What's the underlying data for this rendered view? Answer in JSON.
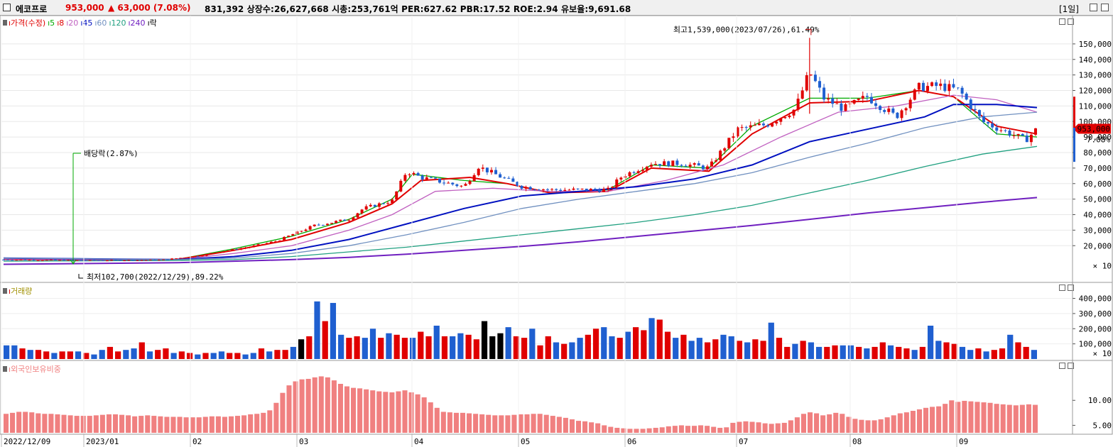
{
  "header": {
    "name": "에코프로",
    "price": "953,000",
    "change": "▲ 63,000 (7.08%)",
    "stats": "831,392  상장수:26,627,668  시총:253,761억  PER:627.62  PBR:17.52  ROE:2.94  유보율:9,691.68",
    "period": "[1일]"
  },
  "colors": {
    "up": "#e00000",
    "down": "#1f5fd0",
    "ma5": "#00aa00",
    "ma8": "#e00000",
    "ma20": "#c060c0",
    "ma45": "#0010c0",
    "ma60": "#7090c0",
    "ma120": "#20a080",
    "ma240": "#7020c0",
    "foreign": "#f08080"
  },
  "legend_price": [
    {
      "text": "가격(수정)",
      "color": "#e00000"
    },
    {
      "text": "5",
      "color": "#00aa00"
    },
    {
      "text": "8",
      "color": "#e00000"
    },
    {
      "text": "20",
      "color": "#c060c0"
    },
    {
      "text": "45",
      "color": "#0010c0"
    },
    {
      "text": "60",
      "color": "#7090c0"
    },
    {
      "text": "120",
      "color": "#20a080"
    },
    {
      "text": "240",
      "color": "#7020c0"
    },
    {
      "text": "락",
      "color": "#000000"
    }
  ],
  "legend_volume": "거래량",
  "legend_foreign": "외국인보유비중",
  "annotations": {
    "high": "최고1,539,000(2023/07/26),61.49%",
    "low": "최저102,700(2022/12/29),89.22%",
    "dividend": "배당락(2.87%)"
  },
  "price_badge": "953,000",
  "price_pct": "7.08%",
  "chart_data": [
    {
      "type": "candlestick",
      "title": "가격(수정)",
      "y_ticks": [
        "150,000",
        "140,000",
        "130,000",
        "120,000",
        "110,000",
        "100,000",
        "90,000",
        "80,000",
        "70,000",
        "60,000",
        "50,000",
        "40,000",
        "30,000",
        "20,000"
      ],
      "y_unit": "× 10",
      "ylim": [
        0,
        160000
      ],
      "x_labels": [
        "2022/12/09",
        "2023/01",
        "02",
        "03",
        "04",
        "05",
        "06",
        "07",
        "08",
        "09"
      ],
      "close_points": [
        [
          0,
          11000
        ],
        [
          30,
          10500
        ],
        [
          55,
          10800
        ],
        [
          68,
          13500
        ],
        [
          75,
          16000
        ],
        [
          85,
          19000
        ],
        [
          95,
          23000
        ],
        [
          100,
          27000
        ],
        [
          108,
          33000
        ],
        [
          120,
          37000
        ],
        [
          125,
          44000
        ],
        [
          135,
          49000
        ],
        [
          140,
          68000
        ],
        [
          145,
          64000
        ],
        [
          150,
          62000
        ],
        [
          160,
          58000
        ],
        [
          165,
          71000
        ],
        [
          180,
          58000
        ],
        [
          190,
          56000
        ],
        [
          200,
          56000
        ],
        [
          210,
          56000
        ],
        [
          215,
          65000
        ],
        [
          225,
          73000
        ],
        [
          235,
          73000
        ],
        [
          245,
          70000
        ],
        [
          255,
          95000
        ],
        [
          265,
          98000
        ],
        [
          275,
          108000
        ],
        [
          280,
          132000
        ],
        [
          285,
          115000
        ],
        [
          292,
          108000
        ],
        [
          300,
          116000
        ],
        [
          310,
          103000
        ],
        [
          318,
          122000
        ],
        [
          325,
          123000
        ],
        [
          332,
          120000
        ],
        [
          340,
          100000
        ],
        [
          350,
          92000
        ],
        [
          355,
          88000
        ],
        [
          359,
          95300
        ]
      ],
      "ma_series": [
        {
          "name": "5",
          "color": "#00aa00",
          "points": [
            [
              0,
              11000
            ],
            [
              60,
              11000
            ],
            [
              80,
              18000
            ],
            [
              100,
              26000
            ],
            [
              120,
              37000
            ],
            [
              135,
              50000
            ],
            [
              142,
              66000
            ],
            [
              160,
              62000
            ],
            [
              175,
              60000
            ],
            [
              190,
              54000
            ],
            [
              210,
              56000
            ],
            [
              225,
              72000
            ],
            [
              245,
              70000
            ],
            [
              260,
              97000
            ],
            [
              280,
              115000
            ],
            [
              300,
              115000
            ],
            [
              318,
              120000
            ],
            [
              330,
              116000
            ],
            [
              345,
              92000
            ],
            [
              359,
              90000
            ]
          ]
        },
        {
          "name": "8",
          "color": "#e00000",
          "points": [
            [
              0,
              11000
            ],
            [
              60,
              11000
            ],
            [
              80,
              17000
            ],
            [
              100,
              24000
            ],
            [
              120,
              35000
            ],
            [
              135,
              47000
            ],
            [
              145,
              62000
            ],
            [
              162,
              64000
            ],
            [
              175,
              60000
            ],
            [
              190,
              54000
            ],
            [
              210,
              55000
            ],
            [
              225,
              70000
            ],
            [
              245,
              68000
            ],
            [
              260,
              92000
            ],
            [
              280,
              112000
            ],
            [
              300,
              113000
            ],
            [
              318,
              120000
            ],
            [
              330,
              116000
            ],
            [
              345,
              97000
            ],
            [
              359,
              92000
            ]
          ]
        },
        {
          "name": "20",
          "color": "#c060c0",
          "points": [
            [
              0,
              11000
            ],
            [
              60,
              11000
            ],
            [
              80,
              15000
            ],
            [
              100,
              20000
            ],
            [
              120,
              30000
            ],
            [
              135,
              40000
            ],
            [
              150,
              55000
            ],
            [
              170,
              57000
            ],
            [
              190,
              55000
            ],
            [
              210,
              55000
            ],
            [
              230,
              62000
            ],
            [
              250,
              72000
            ],
            [
              270,
              90000
            ],
            [
              290,
              106000
            ],
            [
              310,
              110000
            ],
            [
              330,
              117000
            ],
            [
              345,
              114000
            ],
            [
              359,
              106000
            ]
          ]
        },
        {
          "name": "45",
          "color": "#0010c0",
          "points": [
            [
              0,
              12000
            ],
            [
              60,
              11000
            ],
            [
              80,
              13000
            ],
            [
              100,
              17000
            ],
            [
              120,
              24000
            ],
            [
              140,
              34000
            ],
            [
              160,
              44000
            ],
            [
              180,
              52000
            ],
            [
              200,
              55000
            ],
            [
              220,
              58000
            ],
            [
              240,
              63000
            ],
            [
              260,
              72000
            ],
            [
              280,
              87000
            ],
            [
              300,
              95000
            ],
            [
              320,
              103000
            ],
            [
              330,
              111000
            ],
            [
              345,
              111000
            ],
            [
              359,
              109000
            ]
          ]
        },
        {
          "name": "60",
          "color": "#7090c0",
          "points": [
            [
              0,
              12000
            ],
            [
              60,
              11000
            ],
            [
              80,
              12000
            ],
            [
              100,
              15000
            ],
            [
              120,
              20000
            ],
            [
              140,
              27000
            ],
            [
              160,
              35000
            ],
            [
              180,
              44000
            ],
            [
              200,
              50000
            ],
            [
              220,
              55000
            ],
            [
              240,
              60000
            ],
            [
              260,
              67000
            ],
            [
              280,
              77000
            ],
            [
              300,
              86000
            ],
            [
              320,
              96000
            ],
            [
              340,
              103000
            ],
            [
              359,
              106000
            ]
          ]
        },
        {
          "name": "120",
          "color": "#20a080",
          "points": [
            [
              0,
              10000
            ],
            [
              60,
              10500
            ],
            [
              80,
              11000
            ],
            [
              100,
              13000
            ],
            [
              120,
              16000
            ],
            [
              140,
              19000
            ],
            [
              160,
              23000
            ],
            [
              180,
              27000
            ],
            [
              200,
              31000
            ],
            [
              220,
              35000
            ],
            [
              240,
              40000
            ],
            [
              260,
              46000
            ],
            [
              280,
              54000
            ],
            [
              300,
              62000
            ],
            [
              320,
              71000
            ],
            [
              340,
              79000
            ],
            [
              359,
              84000
            ]
          ]
        },
        {
          "name": "240",
          "color": "#7020c0",
          "points": [
            [
              0,
              8000
            ],
            [
              60,
              9000
            ],
            [
              80,
              10000
            ],
            [
              100,
              11000
            ],
            [
              120,
              12500
            ],
            [
              140,
              14500
            ],
            [
              160,
              17000
            ],
            [
              180,
              19500
            ],
            [
              200,
              22500
            ],
            [
              220,
              26000
            ],
            [
              240,
              29500
            ],
            [
              260,
              33000
            ],
            [
              280,
              37000
            ],
            [
              300,
              41000
            ],
            [
              320,
              44500
            ],
            [
              340,
              48000
            ],
            [
              359,
              51000
            ]
          ]
        }
      ]
    },
    {
      "type": "bar",
      "title": "거래량",
      "y_ticks": [
        "400,000",
        "300,000",
        "200,000",
        "100,000"
      ],
      "y_unit": "× 10",
      "ylim": [
        0,
        440000
      ],
      "values": [
        90000,
        90000,
        70000,
        60000,
        60000,
        50000,
        40000,
        50000,
        50000,
        50000,
        40000,
        30000,
        60000,
        80000,
        50000,
        60000,
        70000,
        110000,
        50000,
        60000,
        70000,
        40000,
        50000,
        40000,
        30000,
        40000,
        40000,
        50000,
        40000,
        40000,
        30000,
        40000,
        70000,
        50000,
        60000,
        60000,
        80000,
        130000,
        150000,
        380000,
        250000,
        370000,
        160000,
        140000,
        150000,
        140000,
        200000,
        140000,
        170000,
        160000,
        140000,
        140000,
        180000,
        150000,
        220000,
        150000,
        150000,
        170000,
        160000,
        130000,
        250000,
        150000,
        170000,
        210000,
        150000,
        140000,
        200000,
        90000,
        150000,
        110000,
        100000,
        110000,
        140000,
        160000,
        200000,
        210000,
        150000,
        140000,
        180000,
        210000,
        190000,
        270000,
        260000,
        180000,
        140000,
        160000,
        120000,
        140000,
        110000,
        130000,
        160000,
        150000,
        120000,
        110000,
        130000,
        120000,
        240000,
        140000,
        80000,
        100000,
        120000,
        110000,
        80000,
        80000,
        90000,
        90000,
        90000,
        80000,
        70000,
        80000,
        110000,
        90000,
        80000,
        70000,
        60000,
        80000,
        220000,
        120000,
        110000,
        100000,
        80000,
        60000,
        70000,
        50000,
        60000,
        70000,
        160000,
        110000,
        80000,
        60000
      ],
      "colors": "alternating up/down per session"
    },
    {
      "type": "bar",
      "title": "외국인보유비중",
      "y_ticks": [
        "10.00",
        "5.00"
      ],
      "ylim": [
        3.5,
        16
      ],
      "values": [
        7.3,
        7.5,
        7.7,
        7.7,
        7.6,
        7.4,
        7.3,
        7.3,
        7.2,
        7.1,
        7.0,
        6.9,
        6.9,
        6.9,
        7.0,
        7.1,
        7.2,
        7.2,
        7.1,
        7.0,
        6.8,
        6.9,
        7.0,
        6.9,
        6.8,
        6.7,
        6.7,
        6.7,
        6.6,
        6.6,
        6.6,
        6.7,
        6.8,
        6.8,
        6.7,
        6.8,
        6.9,
        7.0,
        7.2,
        7.3,
        7.5,
        8.0,
        9.5,
        11.5,
        13.0,
        13.8,
        14.2,
        14.3,
        14.6,
        14.8,
        14.6,
        14.0,
        13.3,
        12.8,
        12.5,
        12.4,
        12.2,
        12.0,
        11.8,
        11.7,
        11.6,
        11.8,
        12.0,
        11.6,
        11.2,
        10.6,
        9.6,
        8.5,
        7.7,
        7.6,
        7.5,
        7.5,
        7.4,
        7.3,
        7.2,
        7.1,
        7.0,
        7.0,
        7.0,
        7.1,
        7.2,
        7.2,
        7.3,
        7.3,
        7.1,
        6.9,
        6.7,
        6.5,
        6.2,
        5.9,
        5.8,
        5.6,
        5.4,
        5.0,
        4.7,
        4.5,
        4.4,
        4.3,
        4.3,
        4.3,
        4.4,
        4.5,
        4.6,
        4.8,
        4.9,
        5.0,
        4.9,
        4.9,
        5.0,
        4.9,
        4.7,
        4.5,
        4.6,
        5.5,
        5.7,
        5.8,
        5.7,
        5.6,
        5.4,
        5.3,
        5.4,
        5.5,
        6.0,
        6.6,
        7.3,
        7.6,
        7.4,
        7.0,
        7.2,
        7.5,
        7.3,
        6.7,
        6.3,
        6.1,
        6.0,
        6.0,
        6.2,
        6.6,
        7.0,
        7.4,
        7.6,
        7.9,
        8.2,
        8.5,
        8.7,
        8.8,
        9.3,
        10.0,
        9.7,
        9.9,
        9.8,
        9.7,
        9.6,
        9.5,
        9.3,
        9.2,
        9.1,
        9.0,
        9.1,
        9.2,
        9.1
      ]
    }
  ]
}
